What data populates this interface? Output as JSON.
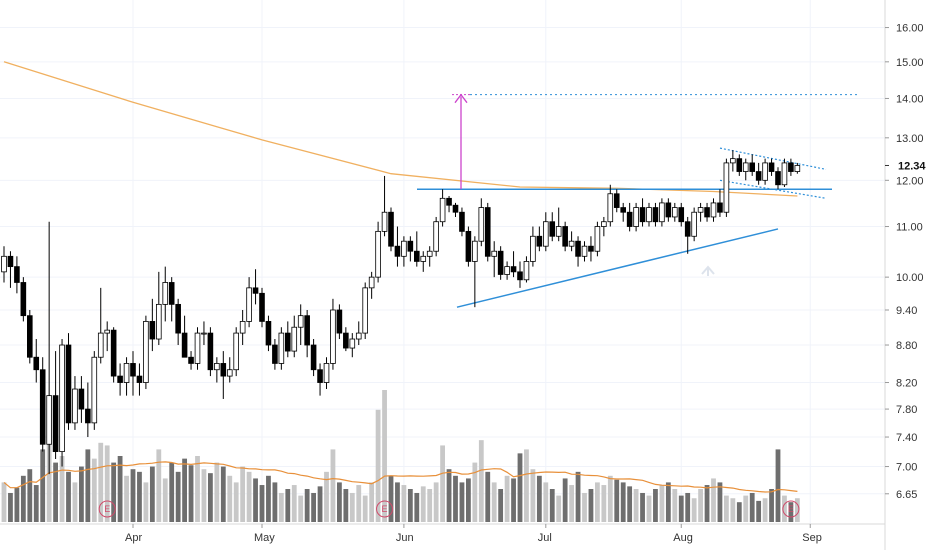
{
  "chart_data": {
    "type": "candlestick",
    "y_scale": "log",
    "ylim": [
      6.45,
      16.6
    ],
    "y_ticks": [
      "16.00",
      "15.00",
      "14.00",
      "13.00",
      "12.00",
      "11.00",
      "10.00",
      "9.40",
      "8.80",
      "8.20",
      "7.80",
      "7.40",
      "7.00",
      "6.65"
    ],
    "x_ticks": [
      {
        "label": "Apr",
        "index": 20
      },
      {
        "label": "May",
        "index": 40
      },
      {
        "label": "Jun",
        "index": 62
      },
      {
        "label": "Jul",
        "index": 84
      },
      {
        "label": "Aug",
        "index": 105
      },
      {
        "label": "Sep",
        "index": 125
      }
    ],
    "last_price": "12.34",
    "grid": true,
    "candles": [
      [
        10.1,
        10.6,
        9.9,
        10.4
      ],
      [
        10.4,
        10.5,
        9.8,
        10.2
      ],
      [
        10.2,
        10.4,
        9.7,
        9.9
      ],
      [
        9.9,
        10.0,
        9.2,
        9.3
      ],
      [
        9.3,
        9.4,
        8.5,
        8.6
      ],
      [
        8.6,
        8.9,
        8.2,
        8.4
      ],
      [
        8.4,
        8.6,
        7.2,
        7.3
      ],
      [
        7.3,
        11.1,
        6.9,
        8.0
      ],
      [
        8.0,
        8.7,
        7.1,
        7.2
      ],
      [
        7.2,
        8.9,
        7.0,
        8.8
      ],
      [
        8.8,
        9.0,
        7.5,
        7.6
      ],
      [
        7.6,
        8.3,
        7.5,
        8.1
      ],
      [
        8.1,
        8.3,
        7.6,
        7.8
      ],
      [
        7.8,
        8.2,
        7.4,
        7.6
      ],
      [
        7.6,
        8.7,
        7.5,
        8.6
      ],
      [
        8.6,
        9.8,
        8.5,
        9.0
      ],
      [
        9.0,
        9.2,
        8.7,
        9.05
      ],
      [
        9.05,
        9.1,
        8.2,
        8.3
      ],
      [
        8.3,
        8.5,
        8.0,
        8.2
      ],
      [
        8.2,
        8.6,
        8.0,
        8.5
      ],
      [
        8.5,
        8.7,
        8.0,
        8.3
      ],
      [
        8.3,
        8.5,
        8.0,
        8.2
      ],
      [
        8.2,
        9.3,
        8.1,
        9.2
      ],
      [
        9.2,
        9.6,
        8.7,
        8.9
      ],
      [
        8.9,
        10.1,
        8.8,
        9.5
      ],
      [
        9.5,
        10.2,
        9.2,
        9.9
      ],
      [
        9.9,
        10.0,
        9.2,
        9.5
      ],
      [
        9.5,
        9.6,
        8.8,
        9.0
      ],
      [
        9.0,
        9.3,
        8.6,
        8.6
      ],
      [
        8.6,
        8.7,
        8.4,
        8.5
      ],
      [
        8.5,
        9.1,
        8.4,
        9.0
      ],
      [
        9.0,
        9.2,
        8.8,
        9.0
      ],
      [
        9.0,
        9.1,
        8.3,
        8.4
      ],
      [
        8.4,
        8.6,
        8.2,
        8.5
      ],
      [
        8.5,
        8.7,
        7.95,
        8.3
      ],
      [
        8.3,
        8.6,
        8.2,
        8.4
      ],
      [
        8.4,
        9.1,
        8.3,
        9.0
      ],
      [
        9.0,
        9.4,
        8.8,
        9.2
      ],
      [
        9.2,
        10.0,
        9.1,
        9.8
      ],
      [
        9.8,
        10.15,
        9.5,
        9.7
      ],
      [
        9.7,
        9.8,
        9.1,
        9.2
      ],
      [
        9.2,
        9.3,
        8.7,
        8.8
      ],
      [
        8.8,
        8.9,
        8.4,
        8.5
      ],
      [
        8.5,
        9.1,
        8.4,
        9.0
      ],
      [
        9.0,
        9.2,
        8.6,
        8.7
      ],
      [
        8.7,
        9.3,
        8.6,
        9.1
      ],
      [
        9.1,
        9.5,
        8.8,
        9.3
      ],
      [
        9.3,
        9.4,
        8.6,
        8.8
      ],
      [
        8.8,
        8.9,
        8.3,
        8.4
      ],
      [
        8.4,
        8.5,
        8.0,
        8.2
      ],
      [
        8.2,
        8.6,
        8.1,
        8.5
      ],
      [
        8.5,
        9.6,
        8.4,
        9.4
      ],
      [
        9.4,
        9.5,
        8.9,
        9.0
      ],
      [
        9.0,
        9.1,
        8.7,
        8.75
      ],
      [
        8.75,
        9.0,
        8.6,
        8.9
      ],
      [
        8.9,
        9.2,
        8.8,
        9.0
      ],
      [
        9.0,
        9.9,
        8.9,
        9.8
      ],
      [
        9.8,
        10.1,
        9.6,
        10.0
      ],
      [
        10.0,
        11.1,
        9.9,
        10.9
      ],
      [
        10.9,
        12.1,
        10.8,
        11.3
      ],
      [
        11.3,
        11.4,
        10.5,
        10.6
      ],
      [
        10.6,
        11.0,
        10.2,
        10.4
      ],
      [
        10.4,
        10.8,
        10.2,
        10.7
      ],
      [
        10.7,
        10.8,
        10.3,
        10.5
      ],
      [
        10.5,
        10.9,
        10.2,
        10.3
      ],
      [
        10.3,
        10.5,
        10.1,
        10.4
      ],
      [
        10.4,
        10.6,
        10.2,
        10.5
      ],
      [
        10.5,
        11.2,
        10.4,
        11.1
      ],
      [
        11.1,
        11.8,
        11.0,
        11.6
      ],
      [
        11.6,
        11.65,
        11.3,
        11.45
      ],
      [
        11.45,
        11.5,
        11.2,
        11.3
      ],
      [
        11.3,
        11.4,
        10.8,
        10.9
      ],
      [
        10.9,
        11.0,
        10.2,
        10.3
      ],
      [
        10.3,
        10.8,
        9.45,
        10.7
      ],
      [
        10.7,
        11.6,
        10.6,
        11.4
      ],
      [
        11.4,
        11.5,
        10.3,
        10.4
      ],
      [
        10.4,
        10.7,
        10.0,
        10.5
      ],
      [
        10.5,
        10.6,
        9.95,
        10.05
      ],
      [
        10.05,
        10.3,
        9.95,
        10.2
      ],
      [
        10.2,
        10.5,
        10.0,
        10.1
      ],
      [
        10.1,
        10.3,
        9.8,
        9.95
      ],
      [
        9.95,
        10.4,
        9.9,
        10.3
      ],
      [
        10.3,
        11.0,
        10.2,
        10.8
      ],
      [
        10.8,
        11.0,
        10.5,
        10.6
      ],
      [
        10.6,
        11.3,
        10.5,
        11.1
      ],
      [
        11.1,
        11.3,
        10.7,
        10.8
      ],
      [
        10.8,
        11.4,
        10.7,
        11.0
      ],
      [
        11.0,
        11.1,
        10.5,
        10.6
      ],
      [
        10.6,
        10.9,
        10.5,
        10.7
      ],
      [
        10.7,
        10.8,
        10.2,
        10.4
      ],
      [
        10.4,
        10.7,
        10.3,
        10.6
      ],
      [
        10.6,
        10.8,
        10.3,
        10.5
      ],
      [
        10.5,
        11.1,
        10.4,
        11.0
      ],
      [
        11.0,
        11.2,
        10.8,
        11.1
      ],
      [
        11.1,
        11.9,
        11.0,
        11.7
      ],
      [
        11.7,
        11.8,
        11.3,
        11.4
      ],
      [
        11.4,
        11.5,
        11.1,
        11.3
      ],
      [
        11.3,
        11.5,
        10.9,
        11.0
      ],
      [
        11.0,
        11.5,
        10.9,
        11.4
      ],
      [
        11.4,
        11.6,
        11.0,
        11.1
      ],
      [
        11.1,
        11.5,
        11.0,
        11.4
      ],
      [
        11.4,
        11.5,
        11.0,
        11.1
      ],
      [
        11.1,
        11.6,
        11.0,
        11.5
      ],
      [
        11.5,
        11.6,
        11.1,
        11.2
      ],
      [
        11.2,
        11.5,
        11.1,
        11.4
      ],
      [
        11.4,
        11.5,
        11.0,
        11.1
      ],
      [
        11.1,
        11.2,
        10.45,
        10.8
      ],
      [
        10.8,
        11.4,
        10.7,
        11.3
      ],
      [
        11.3,
        11.5,
        11.1,
        11.4
      ],
      [
        11.4,
        11.5,
        11.1,
        11.2
      ],
      [
        11.2,
        11.6,
        11.1,
        11.5
      ],
      [
        11.5,
        11.8,
        11.2,
        11.3
      ],
      [
        11.3,
        12.5,
        11.2,
        12.4
      ],
      [
        12.4,
        12.7,
        12.2,
        12.5
      ],
      [
        12.5,
        12.6,
        12.1,
        12.2
      ],
      [
        12.2,
        12.5,
        12.0,
        12.4
      ],
      [
        12.4,
        12.6,
        12.1,
        12.2
      ],
      [
        12.2,
        12.4,
        11.9,
        12.0
      ],
      [
        12.0,
        12.5,
        11.9,
        12.4
      ],
      [
        12.4,
        12.5,
        12.1,
        12.2
      ],
      [
        12.2,
        12.3,
        11.8,
        11.9
      ],
      [
        11.9,
        12.5,
        11.85,
        12.4
      ],
      [
        12.4,
        12.5,
        12.1,
        12.2
      ],
      [
        12.2,
        12.4,
        12.15,
        12.34
      ]
    ],
    "volume": [
      0.3,
      0.22,
      0.26,
      0.35,
      0.4,
      0.28,
      0.55,
      0.62,
      0.45,
      0.5,
      0.38,
      0.3,
      0.42,
      0.55,
      0.48,
      0.6,
      0.58,
      0.45,
      0.5,
      0.35,
      0.4,
      0.38,
      0.3,
      0.42,
      0.55,
      0.33,
      0.45,
      0.38,
      0.48,
      0.43,
      0.5,
      0.4,
      0.37,
      0.45,
      0.42,
      0.35,
      0.3,
      0.42,
      0.38,
      0.33,
      0.28,
      0.35,
      0.3,
      0.22,
      0.25,
      0.28,
      0.2,
      0.25,
      0.22,
      0.27,
      0.38,
      0.55,
      0.3,
      0.25,
      0.22,
      0.28,
      0.2,
      0.3,
      0.85,
      1.0,
      0.35,
      0.3,
      0.28,
      0.25,
      0.22,
      0.27,
      0.25,
      0.3,
      0.58,
      0.4,
      0.35,
      0.3,
      0.33,
      0.45,
      0.62,
      0.38,
      0.3,
      0.25,
      0.35,
      0.33,
      0.52,
      0.55,
      0.4,
      0.35,
      0.3,
      0.25,
      0.2,
      0.33,
      0.28,
      0.38,
      0.22,
      0.25,
      0.3,
      0.28,
      0.35,
      0.32,
      0.3,
      0.27,
      0.25,
      0.22,
      0.2,
      0.25,
      0.28,
      0.3,
      0.25,
      0.2,
      0.22,
      0.18,
      0.25,
      0.28,
      0.33,
      0.3,
      0.2,
      0.18,
      0.15,
      0.2,
      0.22,
      0.16,
      0.18,
      0.25,
      0.55,
      0.2,
      0.15,
      0.18
    ],
    "moving_average_200": [
      [
        0,
        15.0
      ],
      [
        20,
        13.9
      ],
      [
        40,
        12.95
      ],
      [
        60,
        12.15
      ],
      [
        80,
        11.85
      ],
      [
        95,
        11.82
      ],
      [
        110,
        11.75
      ],
      [
        123,
        11.65
      ]
    ]
  },
  "colors": {
    "up_candle": "#ffffff",
    "down_candle": "#000000",
    "candle_border": "#000000",
    "ma_line": "#f0b060",
    "trendline": "#2f8fd8",
    "target_arrow": "#cc44cc",
    "volume_up": "#c8c8c8",
    "volume_down": "#6e6e6e",
    "volume_ma": "#e8903a",
    "earnings": "#d04a6a",
    "grid": "#f0f3fa"
  },
  "earnings_markers": [
    "E",
    "E",
    "E"
  ]
}
